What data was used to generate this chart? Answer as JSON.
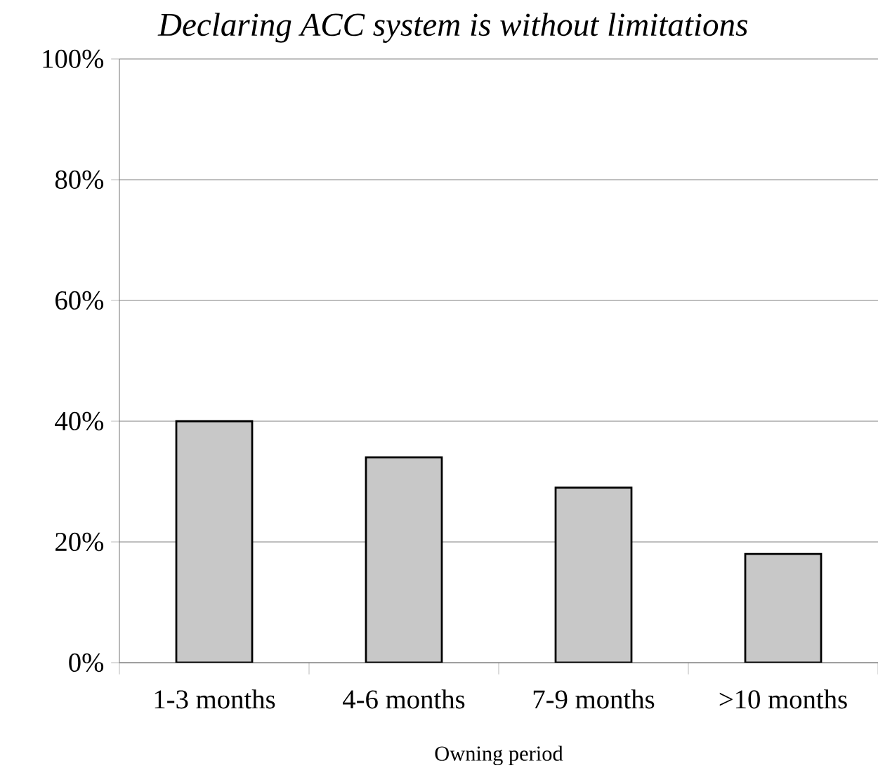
{
  "chart_data": {
    "type": "bar",
    "title": "Declaring ACC system is without limitations",
    "xlabel": "Owning period",
    "categories": [
      "1-3 months",
      "4-6 months",
      "7-9 months",
      ">10 months"
    ],
    "values": [
      40,
      34,
      29,
      18
    ],
    "color": "#c8c8c8",
    "ylim": [
      0,
      100
    ],
    "yticks": [
      {
        "value": 0,
        "label": "0%"
      },
      {
        "value": 20,
        "label": "20%"
      },
      {
        "value": 40,
        "label": "40%"
      },
      {
        "value": 60,
        "label": "60%"
      },
      {
        "value": 80,
        "label": "80%"
      },
      {
        "value": 100,
        "label": "100%"
      }
    ],
    "grid": "y"
  }
}
